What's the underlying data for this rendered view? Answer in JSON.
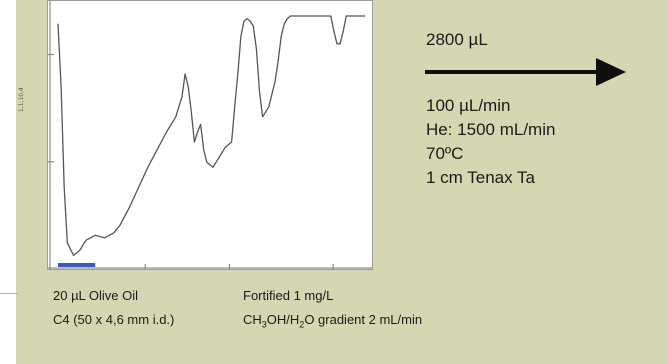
{
  "chart_data": {
    "type": "line",
    "title": "",
    "xlabel": "",
    "ylabel": "",
    "y_tick_label": "1,1,10,4",
    "xlim": [
      0,
      100
    ],
    "ylim": [
      0,
      100
    ],
    "grid": false,
    "x": [
      0,
      1,
      2,
      3,
      5,
      7,
      9,
      12,
      15,
      18,
      20,
      23,
      26,
      29,
      32,
      35,
      38,
      39,
      40,
      41,
      42,
      43,
      44,
      45,
      46,
      47,
      48,
      50,
      52,
      54,
      56,
      57,
      58,
      59,
      60,
      61,
      62,
      63,
      64,
      65,
      66,
      68,
      70,
      71,
      72,
      73,
      74,
      75,
      76,
      78,
      80,
      82,
      84,
      86,
      88,
      89,
      90,
      91,
      92,
      93,
      94,
      95,
      97,
      99
    ],
    "series": [
      {
        "color": "#555555",
        "values": [
          95,
          70,
          30,
          8,
          3,
          5,
          9,
          11,
          10,
          12,
          15,
          22,
          30,
          38,
          45,
          52,
          58,
          62,
          66,
          75,
          70,
          60,
          48,
          52,
          55,
          45,
          40,
          38,
          42,
          46,
          48,
          62,
          75,
          90,
          96,
          97,
          96,
          94,
          85,
          68,
          58,
          62,
          72,
          80,
          90,
          95,
          97,
          98,
          98,
          98,
          98,
          98,
          98,
          98,
          98,
          92,
          87,
          87,
          92,
          98,
          98,
          98,
          98,
          98
        ]
      }
    ],
    "marker_bar": {
      "color": "#3b5bb5",
      "x_start": 0,
      "x_end": 12
    }
  },
  "vol_label": "2800 µL",
  "conditions": [
    "100 µL/min",
    "He: 1500 mL/min",
    "70ºC",
    "1 cm Tenax Ta"
  ],
  "bottom_left": [
    "20 µL Olive Oil",
    "C4 (50 x 4,6 mm i.d.)"
  ],
  "bottom_right": {
    "line1": "Fortified 1 mg/L",
    "line2_parts": [
      "CH",
      "3",
      "OH/H",
      "2",
      "O gradient 2 mL/min"
    ]
  },
  "colors": {
    "panel": "#d7d6b3",
    "arrow": "#0e0e0e",
    "accent": "#e7a64a"
  }
}
